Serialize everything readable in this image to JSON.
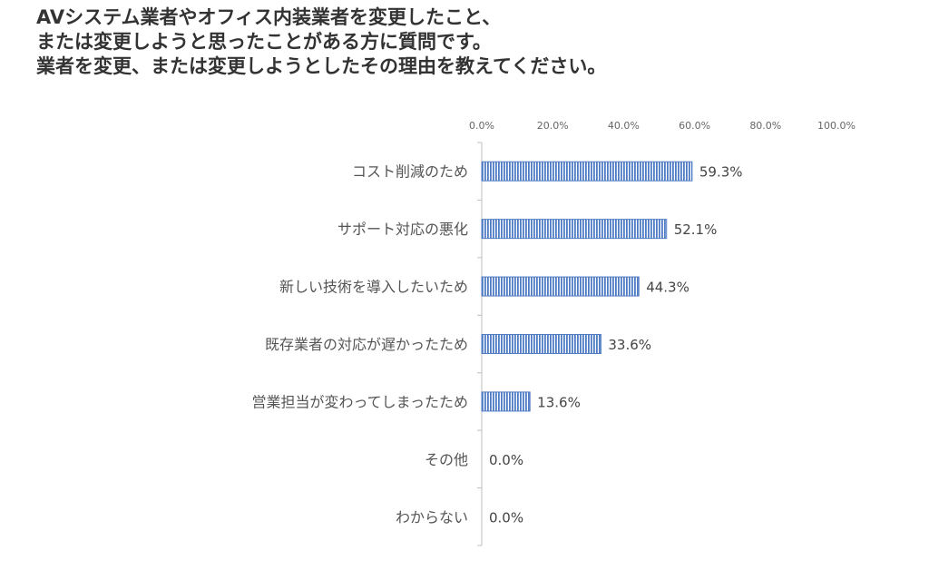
{
  "chart_data": {
    "type": "bar",
    "orientation": "horizontal",
    "title_lines": [
      "AVシステム業者やオフィス内装業者を変更したこと、",
      "または変更しようと思ったことがある方に質問です。",
      "業者を変更、または変更しようとしたその理由を教えてください。"
    ],
    "categories": [
      "コスト削減のため",
      "サポート対応の悪化",
      "新しい技術を導入したいため",
      "既存業者の対応が遅かったため",
      "営業担当が変わってしまったため",
      "その他",
      "わからない"
    ],
    "values": [
      59.3,
      52.1,
      44.3,
      33.6,
      13.6,
      0.0,
      0.0
    ],
    "value_labels": [
      "59.3%",
      "52.1%",
      "44.3%",
      "33.6%",
      "13.6%",
      "0.0%",
      "0.0%"
    ],
    "xlim": [
      0,
      100
    ],
    "ticks": [
      0,
      20,
      40,
      60,
      80,
      100
    ],
    "tick_labels": [
      "0.0%",
      "20.0%",
      "40.0%",
      "60.0%",
      "80.0%",
      "100.0%"
    ],
    "axis_position": "top",
    "grid": false,
    "bar_color": "#4f7cc4",
    "bar_pattern": "vertical-stripes"
  }
}
